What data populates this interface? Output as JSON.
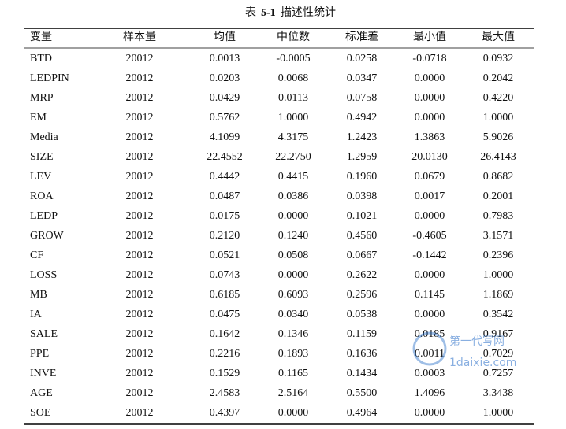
{
  "table": {
    "caption": {
      "prefix": "表",
      "number": "5-1",
      "text": "描述性统计"
    },
    "header": [
      "变量",
      "样本量",
      "均值",
      "中位数",
      "标准差",
      "最小值",
      "最大值"
    ],
    "rows": [
      [
        "BTD",
        "20012",
        "0.0013",
        "-0.0005",
        "0.0258",
        "-0.0718",
        "0.0932"
      ],
      [
        "LEDPIN",
        "20012",
        "0.0203",
        "0.0068",
        "0.0347",
        "0.0000",
        "0.2042"
      ],
      [
        "MRP",
        "20012",
        "0.0429",
        "0.0113",
        "0.0758",
        "0.0000",
        "0.4220"
      ],
      [
        "EM",
        "20012",
        "0.5762",
        "1.0000",
        "0.4942",
        "0.0000",
        "1.0000"
      ],
      [
        "Media",
        "20012",
        "4.1099",
        "4.3175",
        "1.2423",
        "1.3863",
        "5.9026"
      ],
      [
        "SIZE",
        "20012",
        "22.4552",
        "22.2750",
        "1.2959",
        "20.0130",
        "26.4143"
      ],
      [
        "LEV",
        "20012",
        "0.4442",
        "0.4415",
        "0.1960",
        "0.0679",
        "0.8682"
      ],
      [
        "ROA",
        "20012",
        "0.0487",
        "0.0386",
        "0.0398",
        "0.0017",
        "0.2001"
      ],
      [
        "LEDP",
        "20012",
        "0.0175",
        "0.0000",
        "0.1021",
        "0.0000",
        "0.7983"
      ],
      [
        "GROW",
        "20012",
        "0.2120",
        "0.1240",
        "0.4560",
        "-0.4605",
        "3.1571"
      ],
      [
        "CF",
        "20012",
        "0.0521",
        "0.0508",
        "0.0667",
        "-0.1442",
        "0.2396"
      ],
      [
        "LOSS",
        "20012",
        "0.0743",
        "0.0000",
        "0.2622",
        "0.0000",
        "1.0000"
      ],
      [
        "MB",
        "20012",
        "0.6185",
        "0.6093",
        "0.2596",
        "0.1145",
        "1.1869"
      ],
      [
        "IA",
        "20012",
        "0.0475",
        "0.0340",
        "0.0538",
        "0.0000",
        "0.3542"
      ],
      [
        "SALE",
        "20012",
        "0.1642",
        "0.1346",
        "0.1159",
        "0.0185",
        "0.9167"
      ],
      [
        "PPE",
        "20012",
        "0.2216",
        "0.1893",
        "0.1636",
        "0.0011",
        "0.7029"
      ],
      [
        "INVE",
        "20012",
        "0.1529",
        "0.1165",
        "0.1434",
        "0.0003",
        "0.7257"
      ],
      [
        "AGE",
        "20012",
        "2.4583",
        "2.5164",
        "0.5500",
        "1.4096",
        "3.3438"
      ],
      [
        "SOE",
        "20012",
        "0.4397",
        "0.0000",
        "0.4964",
        "0.0000",
        "1.0000"
      ]
    ]
  },
  "watermark": {
    "name": "第一代写网",
    "site": "1daixie.com"
  }
}
